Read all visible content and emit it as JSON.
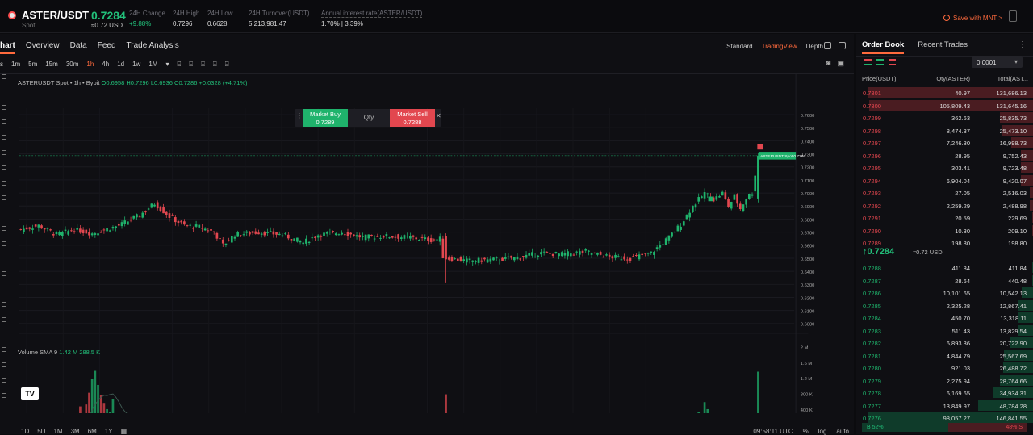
{
  "header": {
    "pair": "ASTER/USDT",
    "type": "Spot",
    "last_price": "0.7284",
    "last_usd": "≈0.72 USD",
    "stats": [
      {
        "label": "24H Change",
        "value": "+9.88%",
        "green": true,
        "x": 160
      },
      {
        "label": "24H High",
        "value": "0.7296",
        "green": false,
        "x": 214
      },
      {
        "label": "24H Low",
        "value": "0.6628",
        "green": false,
        "x": 257
      },
      {
        "label": "24H Turnover(USDT)",
        "value": "5,213,981.47",
        "green": false,
        "x": 308
      },
      {
        "label": "Annual interest rate(ASTER/USDT)",
        "value": "1.70% | 3.39%",
        "green": false,
        "x": 398
      }
    ],
    "save_mnt": "Save with MNT >",
    "colors": {
      "green": "#1fb36c",
      "red": "#e2474f",
      "accent": "#ff6a3d"
    }
  },
  "chart_tabs": [
    "hart",
    "Overview",
    "Data",
    "Feed",
    "Trade Analysis"
  ],
  "views": [
    "Standard",
    "TradingView",
    "Depth"
  ],
  "active_view": "TradingView",
  "timeframes": [
    "s",
    "1m",
    "5m",
    "15m",
    "30m",
    "1h",
    "4h",
    "1d",
    "1w",
    "1M",
    "▾"
  ],
  "active_timeframe": "1h",
  "ohlc": {
    "symbol": "ASTERUSDT Spot • 1h • Bybit",
    "o": "O0.6958",
    "h": "H0.7296",
    "l": "L0.6936",
    "c": "C0.7286",
    "chg": "+0.0328 (+4.71%)"
  },
  "trade_box": {
    "buy_label": "Market Buy",
    "buy_price": "0.7289",
    "qty_label": "Qty",
    "sell_label": "Market Sell",
    "sell_price": "0.7288"
  },
  "volume_label": {
    "name": "Volume SMA 9",
    "v1": "1.42 M",
    "v2": "288.5 K"
  },
  "chart_data": {
    "type": "candlestick",
    "price_axis": [
      "0.7600",
      "0.7500",
      "0.7400",
      "0.7300",
      "0.7200",
      "0.7100",
      "0.7000",
      "0.6900",
      "0.6800",
      "0.6700",
      "0.6600",
      "0.6500",
      "0.6400",
      "0.6300",
      "0.6200",
      "0.6100",
      "0.6000"
    ],
    "ylim": [
      0.595,
      0.765
    ],
    "volume_axis": [
      "2 M",
      "1.6 M",
      "1.2 M",
      "800 K",
      "400 K"
    ],
    "volume_ylim": [
      0,
      2150000
    ],
    "x_labels": [
      "13",
      "12:00",
      "14",
      "12:00",
      "15",
      "12:00",
      "16",
      "12:00",
      "17",
      "12:00",
      "18",
      "12:00",
      "19",
      "12:00",
      "20",
      "12:00",
      "21",
      "12:00"
    ],
    "price_tag": "ASTERUSDT Spot  0.7286",
    "last_close": 0.7286,
    "knots": [
      [
        0,
        0.672
      ],
      [
        6,
        0.675
      ],
      [
        12,
        0.668
      ],
      [
        18,
        0.672
      ],
      [
        24,
        0.669
      ],
      [
        33,
        0.675
      ],
      [
        40,
        0.683
      ],
      [
        45,
        0.692
      ],
      [
        50,
        0.682
      ],
      [
        55,
        0.675
      ],
      [
        60,
        0.674
      ],
      [
        65,
        0.67
      ],
      [
        68,
        0.66
      ],
      [
        72,
        0.668
      ],
      [
        80,
        0.67
      ],
      [
        88,
        0.668
      ],
      [
        95,
        0.662
      ],
      [
        100,
        0.668
      ],
      [
        108,
        0.67
      ],
      [
        115,
        0.666
      ],
      [
        122,
        0.667
      ],
      [
        130,
        0.666
      ],
      [
        138,
        0.664
      ],
      [
        142,
        0.665
      ],
      [
        143,
        0.65
      ],
      [
        150,
        0.648
      ],
      [
        160,
        0.649
      ],
      [
        168,
        0.651
      ],
      [
        175,
        0.654
      ],
      [
        182,
        0.653
      ],
      [
        190,
        0.655
      ],
      [
        198,
        0.651
      ],
      [
        205,
        0.65
      ],
      [
        212,
        0.654
      ],
      [
        218,
        0.666
      ],
      [
        222,
        0.676
      ],
      [
        226,
        0.69
      ],
      [
        230,
        0.7
      ],
      [
        233,
        0.695
      ],
      [
        236,
        0.7
      ],
      [
        238,
        0.69
      ],
      [
        240,
        0.697
      ],
      [
        242,
        0.688
      ],
      [
        244,
        0.696
      ],
      [
        246,
        0.7
      ],
      [
        248,
        0.7286
      ]
    ],
    "volume_spikes": [
      [
        22,
        520000
      ],
      [
        23,
        820000
      ],
      [
        24,
        1180000
      ],
      [
        25,
        1380000
      ],
      [
        26,
        1020000
      ],
      [
        27,
        760000
      ],
      [
        20,
        470000
      ],
      [
        28,
        560000
      ],
      [
        29,
        400000
      ],
      [
        30,
        320000
      ],
      [
        31,
        650000
      ],
      [
        143,
        780000
      ],
      [
        230,
        580000
      ],
      [
        231,
        400000
      ],
      [
        228,
        320000
      ],
      [
        248,
        1360000
      ],
      [
        225,
        260000
      ],
      [
        216,
        290000
      ]
    ]
  },
  "bottom_ranges": [
    "1D",
    "5D",
    "1M",
    "3M",
    "6M",
    "1Y"
  ],
  "bottom_right": {
    "time": "09:58:11 UTC",
    "pct": "%",
    "log": "log",
    "auto": "auto"
  },
  "orderbook": {
    "tabs": [
      "Order Book",
      "Recent Trades"
    ],
    "precision": "0.0001",
    "headers": {
      "price": "Price(USDT)",
      "qty": "Qty(ASTER)",
      "total": "Total(AST..."
    },
    "asks": [
      {
        "price": "0.7301",
        "qty": "40.97",
        "total": "131,686.13",
        "depth": 1.0
      },
      {
        "price": "0.7300",
        "qty": "105,809.43",
        "total": "131,645.16",
        "depth": 0.99
      },
      {
        "price": "0.7299",
        "qty": "362.63",
        "total": "25,835.73",
        "depth": 0.2
      },
      {
        "price": "0.7298",
        "qty": "8,474.37",
        "total": "25,473.10",
        "depth": 0.19
      },
      {
        "price": "0.7297",
        "qty": "7,246.30",
        "total": "16,998.73",
        "depth": 0.13
      },
      {
        "price": "0.7296",
        "qty": "28.95",
        "total": "9,752.43",
        "depth": 0.075
      },
      {
        "price": "0.7295",
        "qty": "303.41",
        "total": "9,723.48",
        "depth": 0.074
      },
      {
        "price": "0.7294",
        "qty": "6,904.04",
        "total": "9,420.07",
        "depth": 0.072
      },
      {
        "price": "0.7293",
        "qty": "27.05",
        "total": "2,516.03",
        "depth": 0.02
      },
      {
        "price": "0.7292",
        "qty": "2,259.29",
        "total": "2,488.98",
        "depth": 0.019
      },
      {
        "price": "0.7291",
        "qty": "20.59",
        "total": "229.69",
        "depth": 0.004
      },
      {
        "price": "0.7290",
        "qty": "10.30",
        "total": "209.10",
        "depth": 0.003
      },
      {
        "price": "0.7289",
        "qty": "198.80",
        "total": "198.80",
        "depth": 0.002
      }
    ],
    "mid_price": "0.7284",
    "mid_arrow": "↑",
    "mid_usd": "≈0.72 USD",
    "bids": [
      {
        "price": "0.7288",
        "qty": "411.84",
        "total": "411.84",
        "depth": 0.003
      },
      {
        "price": "0.7287",
        "qty": "28.64",
        "total": "440.48",
        "depth": 0.004
      },
      {
        "price": "0.7286",
        "qty": "10,101.65",
        "total": "10,542.13",
        "depth": 0.07
      },
      {
        "price": "0.7285",
        "qty": "2,325.28",
        "total": "12,867.41",
        "depth": 0.09
      },
      {
        "price": "0.7284",
        "qty": "450.70",
        "total": "13,318.11",
        "depth": 0.092
      },
      {
        "price": "0.7283",
        "qty": "511.43",
        "total": "13,829.54",
        "depth": 0.095
      },
      {
        "price": "0.7282",
        "qty": "6,893.36",
        "total": "20,722.90",
        "depth": 0.14
      },
      {
        "price": "0.7281",
        "qty": "4,844.79",
        "total": "25,567.69",
        "depth": 0.175
      },
      {
        "price": "0.7280",
        "qty": "921.03",
        "total": "26,488.72",
        "depth": 0.18
      },
      {
        "price": "0.7279",
        "qty": "2,275.94",
        "total": "28,764.66",
        "depth": 0.2
      },
      {
        "price": "0.7278",
        "qty": "6,169.65",
        "total": "34,934.31",
        "depth": 0.24
      },
      {
        "price": "0.7277",
        "qty": "13,849.97",
        "total": "48,784.28",
        "depth": 0.33
      },
      {
        "price": "0.7276",
        "qty": "98,057.27",
        "total": "146,841.55",
        "depth": 1.0
      }
    ],
    "ratio_buy": "B 52%",
    "ratio_sell": "48% S",
    "buy_fraction": 0.52
  }
}
